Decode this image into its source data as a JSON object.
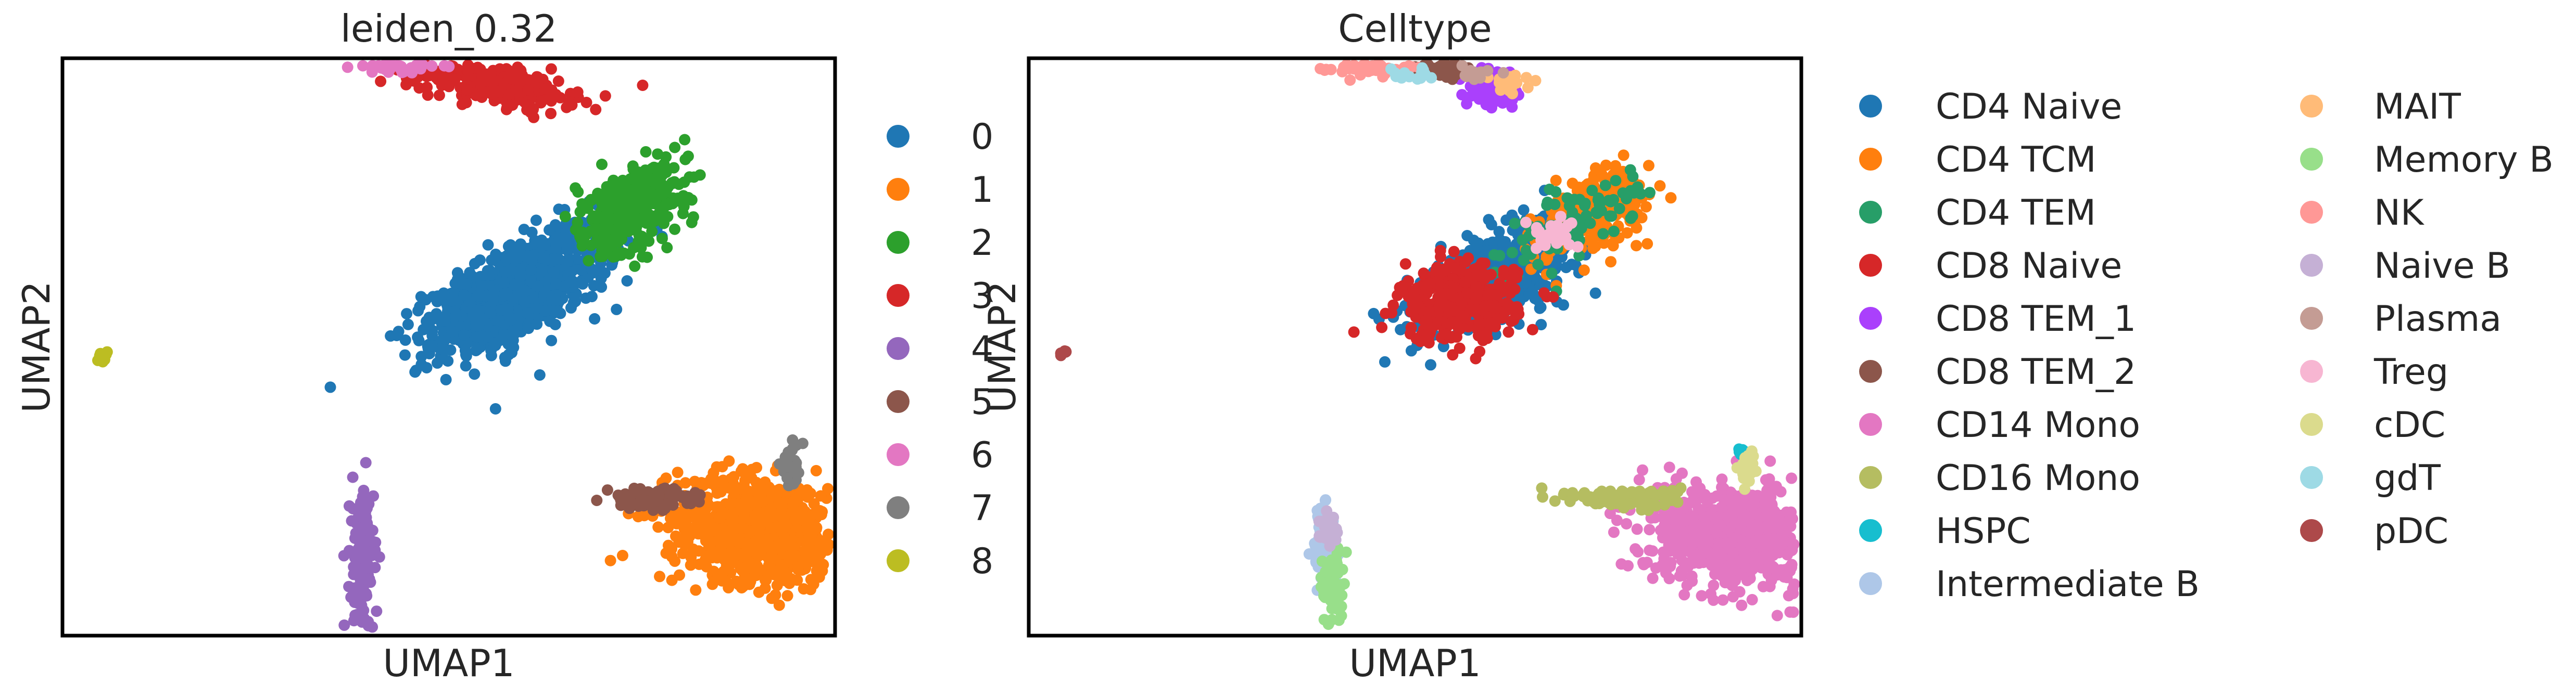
{
  "chart_data": [
    {
      "type": "scatter",
      "title": "leiden_0.32",
      "xlabel": "UMAP1",
      "ylabel": "UMAP2",
      "xlim": [
        -1.0,
        15.0
      ],
      "ylim": [
        -1.5,
        10.5
      ],
      "grid": false,
      "legend": "right",
      "series": [
        {
          "name": "0",
          "color": "#1f77b4",
          "clusters": [
            {
              "cx": 8.5,
              "cy": 5.7,
              "sx": 1.1,
              "sy": 0.45,
              "n": 700,
              "rot": 30
            },
            {
              "cx": 7.7,
              "cy": 5.2,
              "sx": 0.5,
              "sy": 0.35,
              "n": 220,
              "rot": 0
            }
          ]
        },
        {
          "name": "1",
          "color": "#ff7f0e",
          "clusters": [
            {
              "cx": 13.4,
              "cy": 0.7,
              "sx": 0.9,
              "sy": 0.55,
              "n": 800,
              "rot": -10
            }
          ]
        },
        {
          "name": "2",
          "color": "#2ca02c",
          "clusters": [
            {
              "cx": 10.8,
              "cy": 7.4,
              "sx": 0.6,
              "sy": 0.38,
              "n": 360,
              "rot": 38
            }
          ]
        },
        {
          "name": "3",
          "color": "#d62728",
          "clusters": [
            {
              "cx": 7.9,
              "cy": 10.0,
              "sx": 0.85,
              "sy": 0.22,
              "n": 260,
              "rot": -10
            }
          ]
        },
        {
          "name": "4",
          "color": "#9467bd",
          "clusters": [
            {
              "cx": 5.2,
              "cy": 0.0,
              "sx": 0.12,
              "sy": 0.75,
              "n": 160,
              "rot": 0
            }
          ]
        },
        {
          "name": "5",
          "color": "#8c564b",
          "clusters": [
            {
              "cx": 11.2,
              "cy": 1.35,
              "sx": 0.45,
              "sy": 0.1,
              "n": 110,
              "rot": 0
            }
          ]
        },
        {
          "name": "6",
          "color": "#e377c2",
          "clusters": [
            {
              "cx": 5.9,
              "cy": 10.4,
              "sx": 0.45,
              "sy": 0.1,
              "n": 110,
              "rot": 0
            }
          ]
        },
        {
          "name": "7",
          "color": "#7f7f7f",
          "clusters": [
            {
              "cx": 14.1,
              "cy": 2.0,
              "sx": 0.12,
              "sy": 0.22,
              "n": 40,
              "rot": 0
            }
          ]
        },
        {
          "name": "8",
          "color": "#bcbd22",
          "clusters": [
            {
              "cx": -0.2,
              "cy": 4.3,
              "sx": 0.06,
              "sy": 0.05,
              "n": 12,
              "rot": 0
            }
          ]
        }
      ]
    },
    {
      "type": "scatter",
      "title": "Celltype",
      "xlabel": "UMAP1",
      "ylabel": "UMAP2",
      "xlim": [
        -1.0,
        15.0
      ],
      "ylim": [
        -1.5,
        10.5
      ],
      "grid": false,
      "legend": "right",
      "series": [
        {
          "name": "CD4 Naive",
          "color": "#1f77b4",
          "clusters": [
            {
              "cx": 8.8,
              "cy": 6.0,
              "sx": 0.9,
              "sy": 0.38,
              "n": 520,
              "rot": 30
            }
          ]
        },
        {
          "name": "CD4 TCM",
          "color": "#ff7f0e",
          "clusters": [
            {
              "cx": 10.6,
              "cy": 7.3,
              "sx": 0.6,
              "sy": 0.35,
              "n": 260,
              "rot": 35
            }
          ]
        },
        {
          "name": "CD4 TEM",
          "color": "#279e68",
          "clusters": [
            {
              "cx": 10.3,
              "cy": 7.1,
              "sx": 0.8,
              "sy": 0.35,
              "n": 90,
              "rot": 35
            }
          ]
        },
        {
          "name": "CD8 Naive",
          "color": "#d62728",
          "clusters": [
            {
              "cx": 7.9,
              "cy": 5.4,
              "sx": 0.6,
              "sy": 0.4,
              "n": 320,
              "rot": 0
            }
          ]
        },
        {
          "name": "CD8 TEM_1",
          "color": "#aa40fc",
          "clusters": [
            {
              "cx": 8.6,
              "cy": 9.9,
              "sx": 0.3,
              "sy": 0.2,
              "n": 70,
              "rot": -20
            }
          ]
        },
        {
          "name": "CD8 TEM_2",
          "color": "#8c564b",
          "clusters": [
            {
              "cx": 7.5,
              "cy": 10.3,
              "sx": 0.3,
              "sy": 0.12,
              "n": 60,
              "rot": 0
            }
          ]
        },
        {
          "name": "CD14 Mono",
          "color": "#e377c2",
          "clusters": [
            {
              "cx": 13.5,
              "cy": 0.6,
              "sx": 0.8,
              "sy": 0.5,
              "n": 750,
              "rot": -10
            }
          ]
        },
        {
          "name": "CD16 Mono",
          "color": "#b5bd61",
          "clusters": [
            {
              "cx": 11.4,
              "cy": 1.35,
              "sx": 0.55,
              "sy": 0.1,
              "n": 130,
              "rot": 0
            }
          ]
        },
        {
          "name": "HSPC",
          "color": "#17becf",
          "clusters": [
            {
              "cx": 13.8,
              "cy": 2.3,
              "sx": 0.05,
              "sy": 0.05,
              "n": 8,
              "rot": 0
            }
          ]
        },
        {
          "name": "Intermediate B",
          "color": "#aec7e8",
          "clusters": [
            {
              "cx": 5.15,
              "cy": 0.3,
              "sx": 0.12,
              "sy": 0.45,
              "n": 90,
              "rot": 0
            }
          ]
        },
        {
          "name": "MAIT",
          "color": "#ffbb78",
          "clusters": [
            {
              "cx": 9.0,
              "cy": 10.0,
              "sx": 0.2,
              "sy": 0.12,
              "n": 20,
              "rot": 0
            }
          ]
        },
        {
          "name": "Memory B",
          "color": "#98df8a",
          "clusters": [
            {
              "cx": 5.3,
              "cy": -0.5,
              "sx": 0.1,
              "sy": 0.4,
              "n": 70,
              "rot": 0
            }
          ]
        },
        {
          "name": "NK",
          "color": "#ff9896",
          "clusters": [
            {
              "cx": 6.0,
              "cy": 10.4,
              "sx": 0.5,
              "sy": 0.1,
              "n": 130,
              "rot": 0
            }
          ]
        },
        {
          "name": "Naive B",
          "color": "#c5b0d5",
          "clusters": [
            {
              "cx": 5.2,
              "cy": 0.8,
              "sx": 0.1,
              "sy": 0.2,
              "n": 30,
              "rot": 0
            }
          ]
        },
        {
          "name": "Plasma",
          "color": "#c49c94",
          "clusters": [
            {
              "cx": 8.3,
              "cy": 10.2,
              "sx": 0.2,
              "sy": 0.1,
              "n": 15,
              "rot": 0
            }
          ]
        },
        {
          "name": "Treg",
          "color": "#f7b6d2",
          "clusters": [
            {
              "cx": 9.9,
              "cy": 6.8,
              "sx": 0.3,
              "sy": 0.2,
              "n": 25,
              "rot": 0
            }
          ]
        },
        {
          "name": "cDC",
          "color": "#dbdb8d",
          "clusters": [
            {
              "cx": 13.9,
              "cy": 2.0,
              "sx": 0.1,
              "sy": 0.15,
              "n": 25,
              "rot": 0
            }
          ]
        },
        {
          "name": "gdT",
          "color": "#9edae5",
          "clusters": [
            {
              "cx": 6.8,
              "cy": 10.2,
              "sx": 0.25,
              "sy": 0.08,
              "n": 15,
              "rot": 0
            }
          ]
        },
        {
          "name": "pDC",
          "color": "#ad494a",
          "clusters": [
            {
              "cx": -0.3,
              "cy": 4.4,
              "sx": 0.05,
              "sy": 0.04,
              "n": 8,
              "rot": 0
            }
          ]
        }
      ]
    }
  ]
}
